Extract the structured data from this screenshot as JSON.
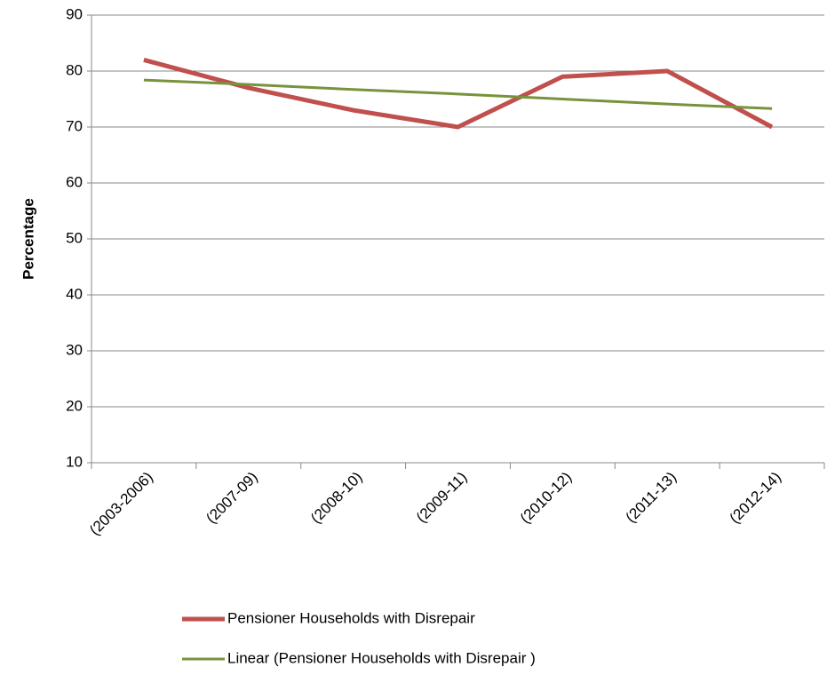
{
  "chart_data": {
    "type": "line",
    "y_label": "Percentage",
    "categories": [
      "(2003-2006)",
      "(2007-09)",
      "(2008-10)",
      "(2009-11)",
      "(2010-12)",
      "(2011-13)",
      "(2012-14)"
    ],
    "series": [
      {
        "name": "Pensioner Households with Disrepair",
        "color": "#c0504d",
        "values": [
          82,
          77,
          73,
          70,
          79,
          80,
          70
        ]
      },
      {
        "name": "Linear (Pensioner Households with Disrepair )",
        "color": "#77933c",
        "values": [
          78.4,
          77.6,
          76.7,
          75.9,
          75.0,
          74.1,
          73.3
        ]
      }
    ],
    "ylim": [
      10,
      90
    ],
    "yticks": [
      10,
      20,
      30,
      40,
      50,
      60,
      70,
      80,
      90
    ],
    "grid": true,
    "legend": "bottom"
  }
}
